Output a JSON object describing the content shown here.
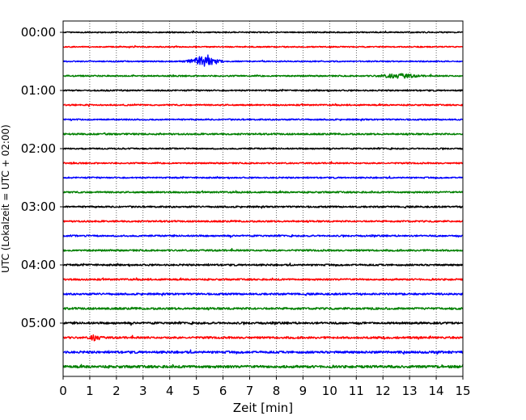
{
  "chart_data": {
    "type": "line",
    "title": "",
    "xlabel": "Zeit  [min]",
    "ylabel": "UTC (Lokalzeit = UTC + 02:00)",
    "xlim": [
      0,
      15
    ],
    "xticks": [
      0,
      1,
      2,
      3,
      4,
      5,
      6,
      7,
      8,
      9,
      10,
      11,
      12,
      13,
      14,
      15
    ],
    "grid": "vertical dotted",
    "ytick_labels": [
      "00:00",
      "01:00",
      "02:00",
      "03:00",
      "04:00",
      "05:00"
    ],
    "colors": [
      "#000000",
      "#ff0000",
      "#0000ff",
      "#008000"
    ],
    "series": [
      {
        "start": "00:00",
        "color": "#000000",
        "amplitude": 0.12,
        "events": []
      },
      {
        "start": "00:15",
        "color": "#ff0000",
        "amplitude": 0.12,
        "events": []
      },
      {
        "start": "00:30",
        "color": "#0000ff",
        "amplitude": 0.12,
        "events": [
          {
            "t": 5.3,
            "amp": 1.0,
            "width": 0.9
          }
        ]
      },
      {
        "start": "00:45",
        "color": "#008000",
        "amplitude": 0.14,
        "events": [
          {
            "t": 12.6,
            "amp": 0.4,
            "width": 1.2
          }
        ]
      },
      {
        "start": "01:00",
        "color": "#000000",
        "amplitude": 0.14,
        "events": []
      },
      {
        "start": "01:15",
        "color": "#ff0000",
        "amplitude": 0.14,
        "events": []
      },
      {
        "start": "01:30",
        "color": "#0000ff",
        "amplitude": 0.14,
        "events": []
      },
      {
        "start": "01:45",
        "color": "#008000",
        "amplitude": 0.16,
        "events": []
      },
      {
        "start": "02:00",
        "color": "#000000",
        "amplitude": 0.14,
        "events": []
      },
      {
        "start": "02:15",
        "color": "#ff0000",
        "amplitude": 0.14,
        "events": []
      },
      {
        "start": "02:30",
        "color": "#0000ff",
        "amplitude": 0.14,
        "events": []
      },
      {
        "start": "02:45",
        "color": "#008000",
        "amplitude": 0.16,
        "events": []
      },
      {
        "start": "03:00",
        "color": "#000000",
        "amplitude": 0.16,
        "events": []
      },
      {
        "start": "03:15",
        "color": "#ff0000",
        "amplitude": 0.16,
        "events": []
      },
      {
        "start": "03:30",
        "color": "#0000ff",
        "amplitude": 0.16,
        "events": []
      },
      {
        "start": "03:45",
        "color": "#008000",
        "amplitude": 0.17,
        "events": []
      },
      {
        "start": "04:00",
        "color": "#000000",
        "amplitude": 0.17,
        "events": []
      },
      {
        "start": "04:15",
        "color": "#ff0000",
        "amplitude": 0.17,
        "events": []
      },
      {
        "start": "04:30",
        "color": "#0000ff",
        "amplitude": 0.18,
        "events": []
      },
      {
        "start": "04:45",
        "color": "#008000",
        "amplitude": 0.2,
        "events": []
      },
      {
        "start": "05:00",
        "color": "#000000",
        "amplitude": 0.2,
        "events": []
      },
      {
        "start": "05:15",
        "color": "#ff0000",
        "amplitude": 0.2,
        "events": [
          {
            "t": 1.2,
            "amp": 0.55,
            "width": 0.35
          }
        ]
      },
      {
        "start": "05:30",
        "color": "#0000ff",
        "amplitude": 0.22,
        "events": []
      },
      {
        "start": "05:45",
        "color": "#008000",
        "amplitude": 0.25,
        "events": []
      }
    ]
  }
}
